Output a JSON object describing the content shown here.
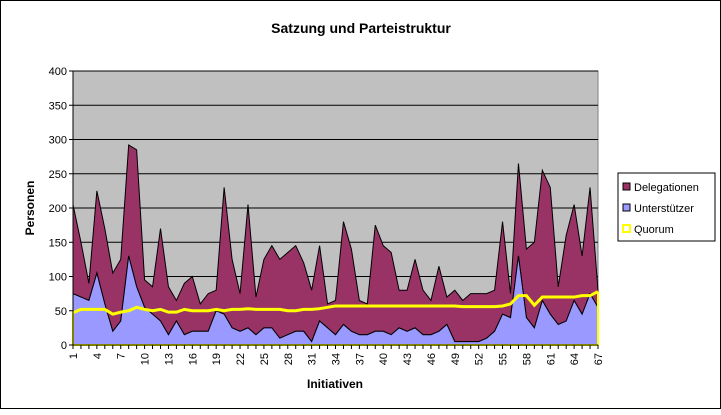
{
  "chart_data": {
    "type": "area",
    "stacked": true,
    "title": "Satzung und Parteistruktur",
    "xlabel": "Initiativen",
    "ylabel": "Personen",
    "ylim": [
      0,
      400
    ],
    "yticks": [
      0,
      50,
      100,
      150,
      200,
      250,
      300,
      350,
      400
    ],
    "x": [
      1,
      2,
      3,
      4,
      5,
      6,
      7,
      8,
      9,
      10,
      11,
      12,
      13,
      14,
      15,
      16,
      17,
      18,
      19,
      20,
      21,
      22,
      23,
      24,
      25,
      26,
      27,
      28,
      29,
      30,
      31,
      32,
      33,
      34,
      35,
      36,
      37,
      38,
      39,
      40,
      41,
      42,
      43,
      44,
      45,
      46,
      47,
      48,
      49,
      50,
      51,
      52,
      53,
      54,
      55,
      56,
      57,
      58,
      59,
      60,
      61,
      62,
      63,
      64,
      65,
      66,
      67
    ],
    "xtick_labels": [
      "1",
      "4",
      "7",
      "10",
      "13",
      "16",
      "19",
      "22",
      "25",
      "28",
      "31",
      "34",
      "37",
      "40",
      "43",
      "46",
      "49",
      "52",
      "55",
      "58",
      "61",
      "64",
      "67"
    ],
    "grid": true,
    "legend_position": "right",
    "colors": {
      "Delegationen": "#993366",
      "Unterstützer": "#9999FF",
      "Quorum": "#FFFF00",
      "plot_bg": "#C0C0C0"
    },
    "series": [
      {
        "name": "Unterstützer",
        "kind": "area",
        "values": [
          75,
          70,
          65,
          105,
          60,
          20,
          35,
          130,
          85,
          55,
          45,
          35,
          15,
          35,
          15,
          20,
          20,
          20,
          50,
          45,
          25,
          20,
          25,
          15,
          25,
          25,
          10,
          15,
          20,
          20,
          5,
          35,
          25,
          15,
          30,
          20,
          15,
          15,
          20,
          20,
          15,
          25,
          20,
          25,
          15,
          15,
          20,
          30,
          5,
          5,
          5,
          5,
          10,
          20,
          45,
          40,
          130,
          40,
          25,
          65,
          45,
          30,
          35,
          65,
          45,
          75,
          55
        ]
      },
      {
        "name": "Delegationen",
        "kind": "area",
        "values": [
          130,
          80,
          25,
          120,
          110,
          85,
          90,
          162,
          200,
          40,
          40,
          135,
          70,
          30,
          75,
          80,
          40,
          55,
          30,
          185,
          100,
          55,
          180,
          55,
          100,
          120,
          115,
          120,
          125,
          100,
          75,
          110,
          35,
          50,
          150,
          120,
          50,
          45,
          155,
          125,
          120,
          55,
          60,
          100,
          65,
          50,
          95,
          40,
          75,
          60,
          70,
          70,
          65,
          60,
          135,
          35,
          135,
          100,
          125,
          190,
          185,
          55,
          125,
          140,
          85,
          155,
          25
        ]
      },
      {
        "name": "Quorum",
        "kind": "line",
        "values": [
          47,
          52,
          52,
          52,
          52,
          45,
          48,
          50,
          55,
          52,
          50,
          52,
          48,
          48,
          52,
          50,
          50,
          50,
          52,
          50,
          52,
          52,
          53,
          52,
          52,
          52,
          52,
          50,
          50,
          52,
          52,
          53,
          55,
          57,
          57,
          57,
          57,
          57,
          57,
          57,
          57,
          57,
          57,
          57,
          57,
          57,
          57,
          57,
          57,
          56,
          56,
          56,
          56,
          56,
          57,
          60,
          72,
          72,
          58,
          70,
          70,
          70,
          70,
          70,
          72,
          72,
          78
        ]
      }
    ]
  }
}
